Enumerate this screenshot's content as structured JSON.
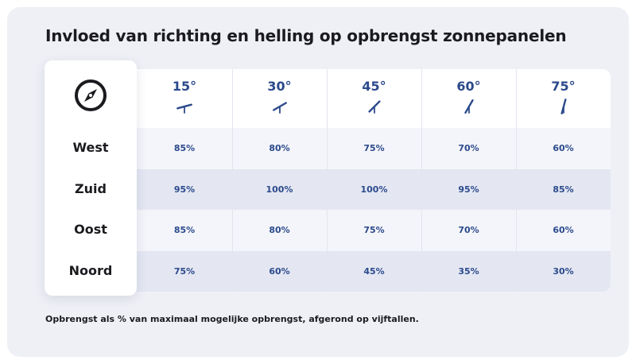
{
  "title": "Invloed van richting en helling op opbrengst zonnepanelen",
  "header_icon": "compass-icon",
  "columns": [
    "15°",
    "30°",
    "45°",
    "60°",
    "75°"
  ],
  "tilt_degrees": [
    15,
    30,
    45,
    60,
    75
  ],
  "rows": [
    {
      "label": "West",
      "values": [
        "85%",
        "80%",
        "75%",
        "70%",
        "60%"
      ]
    },
    {
      "label": "Zuid",
      "values": [
        "95%",
        "100%",
        "100%",
        "95%",
        "85%"
      ]
    },
    {
      "label": "Oost",
      "values": [
        "85%",
        "80%",
        "75%",
        "70%",
        "60%"
      ]
    },
    {
      "label": "Noord",
      "values": [
        "75%",
        "60%",
        "45%",
        "35%",
        "30%"
      ]
    }
  ],
  "footnote": "Opbrengst als % van maximaal mogelijke opbrengst, afgerond op vijftallen.",
  "colors": {
    "accent": "#2b4a8c",
    "background": "#eff0f6",
    "row_light": "#f4f5fa",
    "row_dark": "#e4e7f2",
    "text": "#1b1b1f"
  }
}
